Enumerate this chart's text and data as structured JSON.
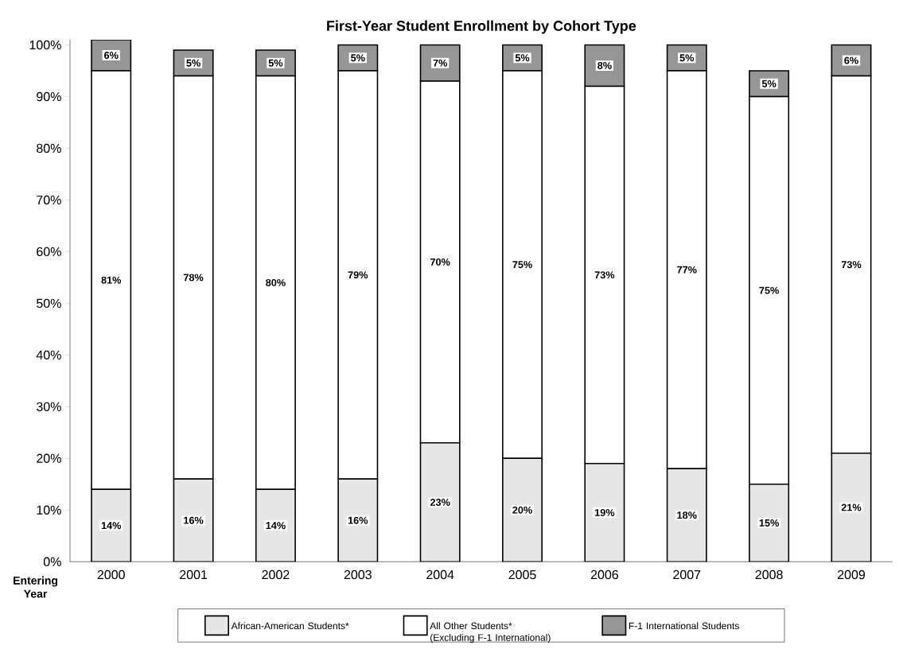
{
  "chart_data": {
    "type": "bar",
    "stacked": true,
    "title": "First-Year Student Enrollment by Cohort Type",
    "xlabel": "Entering Year",
    "categories": [
      "2000",
      "2001",
      "2002",
      "2003",
      "2004",
      "2005",
      "2006",
      "2007",
      "2008",
      "2009"
    ],
    "series": [
      {
        "name": "African-American Students*",
        "color": "#e6e6e6",
        "values": [
          14,
          16,
          14,
          16,
          23,
          20,
          19,
          18,
          15,
          21
        ],
        "value_labels": [
          "14%",
          "16%",
          "14%",
          "16%",
          "23%",
          "20%",
          "19%",
          "18%",
          "15%",
          "21%"
        ]
      },
      {
        "name": "All Other Students* (Excluding F-1 International)",
        "color": "#ffffff",
        "values": [
          81,
          78,
          80,
          79,
          70,
          75,
          73,
          77,
          75,
          73
        ],
        "value_labels": [
          "81%",
          "78%",
          "80%",
          "79%",
          "70%",
          "75%",
          "73%",
          "77%",
          "75%",
          "73%"
        ]
      },
      {
        "name": "F-1 International Students",
        "color": "#969696",
        "values": [
          6,
          5,
          5,
          5,
          7,
          5,
          8,
          5,
          5,
          6
        ],
        "value_labels": [
          "6%",
          "5%",
          "5%",
          "5%",
          "7%",
          "5%",
          "8%",
          "5%",
          "5%",
          "6%"
        ]
      }
    ],
    "ylim": [
      0,
      101
    ],
    "yticks": [
      {
        "value": 0,
        "label": "0%"
      },
      {
        "value": 10,
        "label": "10%"
      },
      {
        "value": 20,
        "label": "20%"
      },
      {
        "value": 30,
        "label": "30%"
      },
      {
        "value": 40,
        "label": "40%"
      },
      {
        "value": 50,
        "label": "50%"
      },
      {
        "value": 60,
        "label": "60%"
      },
      {
        "value": 70,
        "label": "70%"
      },
      {
        "value": 80,
        "label": "80%"
      },
      {
        "value": 90,
        "label": "90%"
      },
      {
        "value": 100,
        "label": "100%"
      }
    ],
    "legend": "bottom",
    "grid": false
  }
}
